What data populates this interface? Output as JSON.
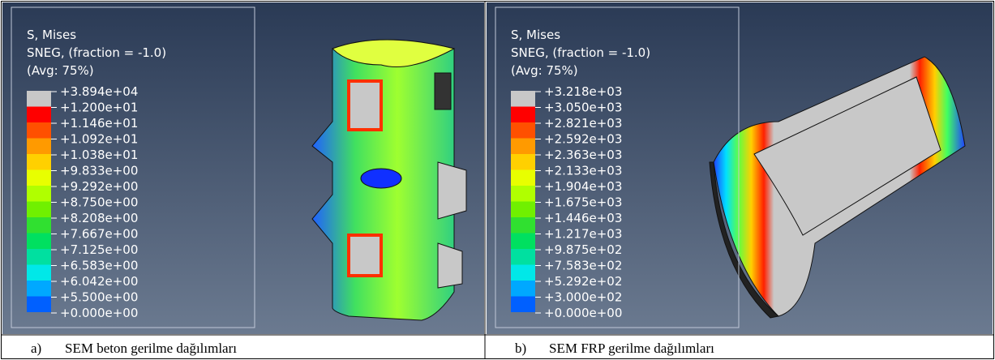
{
  "panels": [
    {
      "legend": {
        "title": [
          "S, Mises",
          "SNEG, (fraction = -1.0)",
          "(Avg: 75%)"
        ],
        "labels": [
          "+3.894e+04",
          "+1.200e+01",
          "+1.146e+01",
          "+1.092e+01",
          "+1.038e+01",
          "+9.833e+00",
          "+9.292e+00",
          "+8.750e+00",
          "+8.208e+00",
          "+7.667e+00",
          "+7.125e+00",
          "+6.583e+00",
          "+6.042e+00",
          "+5.500e+00",
          "+0.000e+00"
        ]
      },
      "caption": {
        "marker": "a)",
        "text": "SEM beton gerilme dağılımları"
      }
    },
    {
      "legend": {
        "title": [
          "S, Mises",
          "SNEG, (fraction = -1.0)",
          "(Avg: 75%)"
        ],
        "labels": [
          "+3.218e+03",
          "+3.050e+03",
          "+2.821e+03",
          "+2.592e+03",
          "+2.363e+03",
          "+2.133e+03",
          "+1.904e+03",
          "+1.675e+03",
          "+1.446e+03",
          "+1.217e+03",
          "+9.875e+02",
          "+7.583e+02",
          "+5.292e+02",
          "+3.000e+02",
          "+0.000e+00"
        ]
      },
      "caption": {
        "marker": "b)",
        "text": "SEM FRP gerilme dağılımları"
      }
    }
  ]
}
